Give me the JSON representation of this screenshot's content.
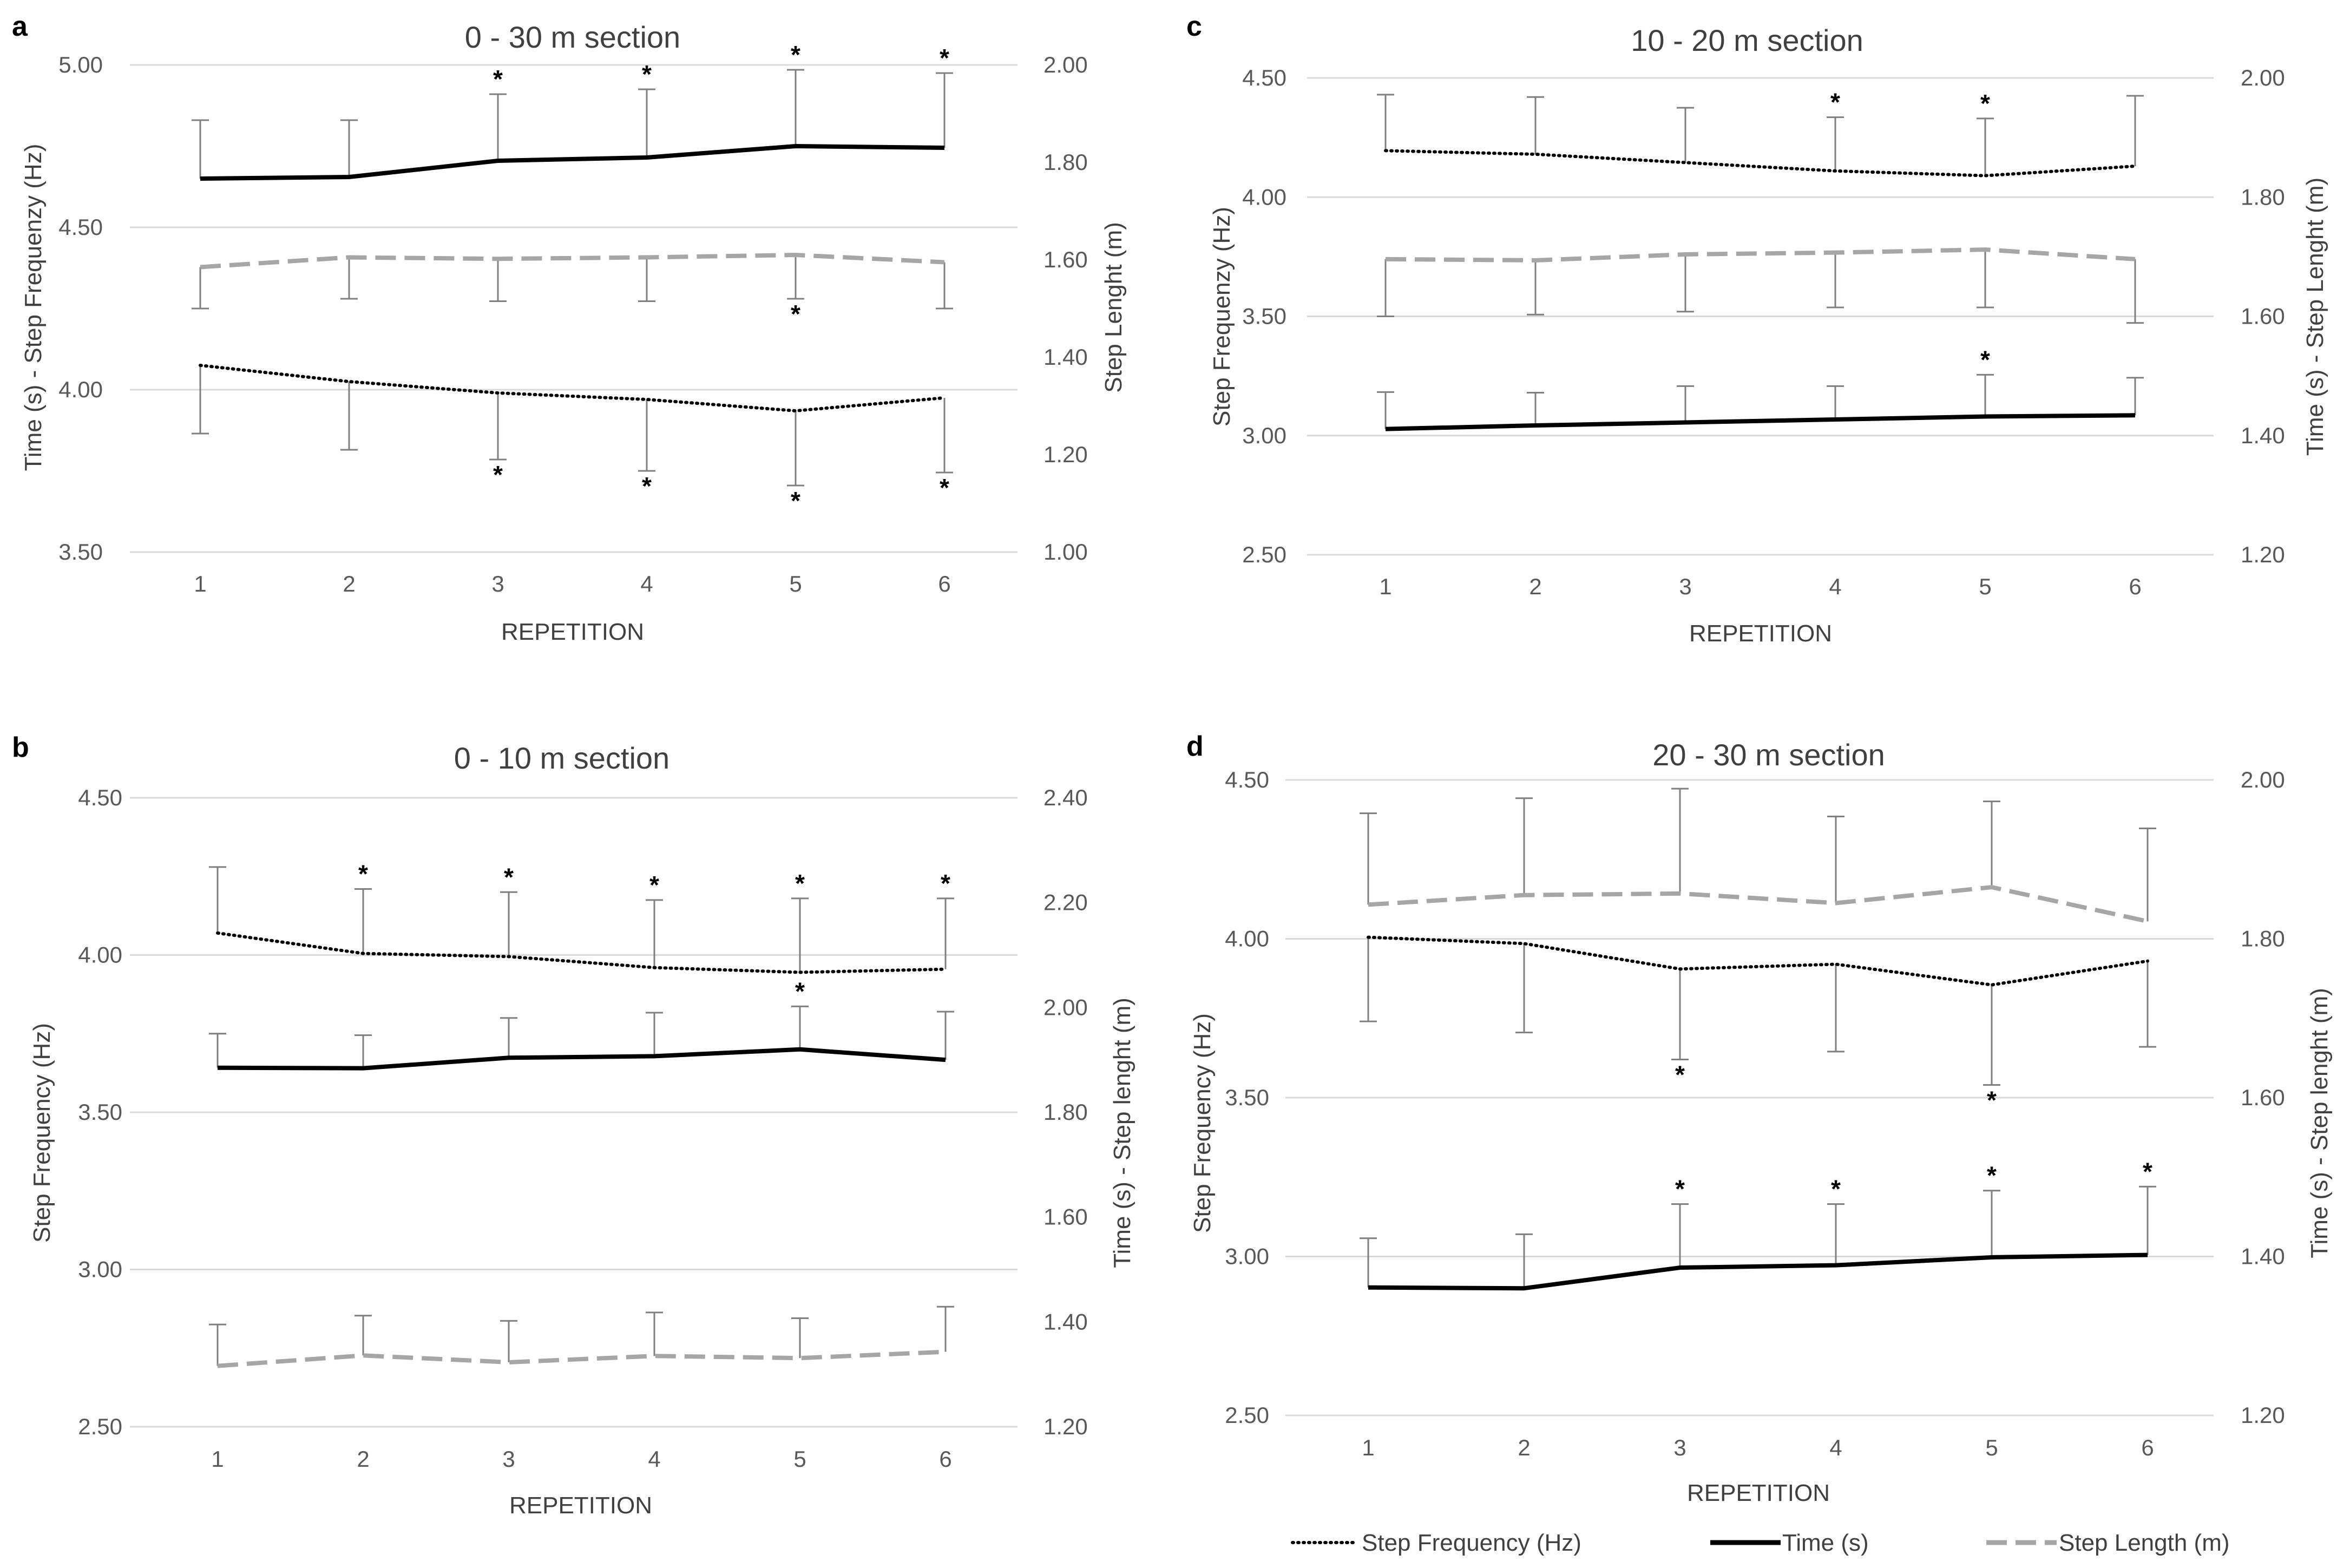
{
  "series_styles": {
    "freq": {
      "name": "Step Frequency (Hz)",
      "color": "#000000",
      "dash": "dotted"
    },
    "time": {
      "name": "Time (s)",
      "color": "#000000",
      "dash": "solid"
    },
    "length": {
      "name": "Step Length (m)",
      "color": "#A6A6A6",
      "dash": "dashed"
    }
  },
  "legend": [
    "Step Frequency (Hz)",
    "Time (s)",
    "Step Length (m)"
  ],
  "chart_data": [
    {
      "panel": "a",
      "type": "line",
      "title": "0 - 30 m section",
      "xlabel": "REPETITION",
      "ylabel_left": "Time (s) - Step Frequenzy (Hz)",
      "ylabel_right": "Step Lenght (m)",
      "categories": [
        "1",
        "2",
        "3",
        "4",
        "5",
        "6"
      ],
      "left_axis": {
        "min": 3.5,
        "max": 5.0,
        "ticks": [
          "3.50",
          "4.00",
          "4.50",
          "5.00"
        ]
      },
      "right_axis": {
        "min": 1.0,
        "max": 2.0,
        "ticks": [
          "1.00",
          "1.20",
          "1.40",
          "1.60",
          "1.80",
          "2.00"
        ]
      },
      "series": [
        {
          "key": "time",
          "axis": "left",
          "values": [
            4.65,
            4.655,
            4.705,
            4.715,
            4.75,
            4.745
          ],
          "err": [
            4.83,
            4.83,
            4.91,
            4.925,
            4.985,
            4.975
          ],
          "stars": [
            "",
            "",
            "above",
            "above",
            "above",
            "above"
          ]
        },
        {
          "key": "length",
          "axis": "right",
          "values": [
            1.585,
            1.605,
            1.602,
            1.605,
            1.61,
            1.595
          ],
          "err": [
            1.5,
            1.52,
            1.515,
            1.515,
            1.52,
            1.5
          ],
          "stars": [
            "",
            "",
            "",
            "",
            "below",
            ""
          ]
        },
        {
          "key": "freq",
          "axis": "left",
          "values": [
            4.075,
            4.025,
            3.99,
            3.97,
            3.935,
            3.975
          ],
          "err": [
            3.865,
            3.815,
            3.785,
            3.75,
            3.705,
            3.745
          ],
          "stars": [
            "",
            "",
            "below",
            "below",
            "below",
            "below"
          ]
        }
      ]
    },
    {
      "panel": "b",
      "type": "line",
      "title": "0 - 10 m section",
      "xlabel": "REPETITION",
      "ylabel_left": "Step Frequency (Hz)",
      "ylabel_right": "Time (s) - Step lenght (m)",
      "categories": [
        "1",
        "2",
        "3",
        "4",
        "5",
        "6"
      ],
      "left_axis": {
        "min": 2.5,
        "max": 4.5,
        "ticks": [
          "2.50",
          "3.00",
          "3.50",
          "4.00",
          "4.50"
        ]
      },
      "right_axis": {
        "min": 1.2,
        "max": 2.4,
        "ticks": [
          "1.20",
          "1.40",
          "1.60",
          "1.80",
          "2.00",
          "2.20",
          "2.40"
        ]
      },
      "series": [
        {
          "key": "freq",
          "axis": "left",
          "values": [
            4.07,
            4.005,
            3.995,
            3.96,
            3.945,
            3.955
          ],
          "err": [
            4.28,
            4.21,
            4.2,
            4.175,
            4.18,
            4.18
          ],
          "stars": [
            "",
            "above",
            "above",
            "above",
            "above",
            "above"
          ]
        },
        {
          "key": "time",
          "axis": "right",
          "values": [
            1.885,
            1.884,
            1.904,
            1.907,
            1.92,
            1.9
          ],
          "err": [
            1.95,
            1.947,
            1.98,
            1.99,
            2.002,
            1.992
          ],
          "stars": [
            "",
            "",
            "",
            "",
            "above",
            ""
          ]
        },
        {
          "key": "length",
          "axis": "right",
          "values": [
            1.316,
            1.336,
            1.323,
            1.335,
            1.331,
            1.343
          ],
          "err": [
            1.395,
            1.412,
            1.402,
            1.418,
            1.407,
            1.429
          ],
          "stars": [
            "",
            "",
            "",
            "",
            "",
            ""
          ]
        }
      ]
    },
    {
      "panel": "c",
      "type": "line",
      "title": "10 - 20 m section",
      "xlabel": "REPETITION",
      "ylabel_left": "Step Frequenzy (Hz)",
      "ylabel_right": "Time (s) - Step Lenght (m)",
      "categories": [
        "1",
        "2",
        "3",
        "4",
        "5",
        "6"
      ],
      "left_axis": {
        "min": 2.5,
        "max": 4.5,
        "ticks": [
          "2.50",
          "3.00",
          "3.50",
          "4.00",
          "4.50"
        ]
      },
      "right_axis": {
        "min": 1.2,
        "max": 2.0,
        "ticks": [
          "1.20",
          "1.40",
          "1.60",
          "1.80",
          "2.00"
        ]
      },
      "series": [
        {
          "key": "freq",
          "axis": "left",
          "values": [
            4.195,
            4.18,
            4.145,
            4.11,
            4.09,
            4.13
          ],
          "err": [
            4.43,
            4.42,
            4.375,
            4.335,
            4.33,
            4.425
          ],
          "stars": [
            "",
            "",
            "",
            "above",
            "above",
            ""
          ]
        },
        {
          "key": "length",
          "axis": "right",
          "values": [
            1.696,
            1.694,
            1.704,
            1.707,
            1.712,
            1.696
          ],
          "err": [
            1.6,
            1.603,
            1.608,
            1.615,
            1.615,
            1.589
          ],
          "stars": [
            "",
            "",
            "",
            "",
            "",
            ""
          ]
        },
        {
          "key": "time",
          "axis": "right",
          "values": [
            1.411,
            1.417,
            1.422,
            1.427,
            1.432,
            1.434
          ],
          "err": [
            1.473,
            1.472,
            1.483,
            1.483,
            1.502,
            1.497
          ],
          "stars": [
            "",
            "",
            "",
            "",
            "above",
            ""
          ]
        }
      ]
    },
    {
      "panel": "d",
      "type": "line",
      "title": "20 - 30 m section",
      "xlabel": "REPETITION",
      "ylabel_left": "Step Frequency (Hz)",
      "ylabel_right": "Time (s) - Step lenght (m)",
      "categories": [
        "1",
        "2",
        "3",
        "4",
        "5",
        "6"
      ],
      "left_axis": {
        "min": 2.5,
        "max": 4.5,
        "ticks": [
          "2.50",
          "3.00",
          "3.50",
          "4.00",
          "4.50"
        ]
      },
      "right_axis": {
        "min": 1.2,
        "max": 2.0,
        "ticks": [
          "1.20",
          "1.40",
          "1.60",
          "1.80",
          "2.00"
        ]
      },
      "series": [
        {
          "key": "length",
          "axis": "right",
          "values": [
            1.843,
            1.855,
            1.857,
            1.845,
            1.865,
            1.822
          ],
          "err": [
            1.958,
            1.977,
            1.989,
            1.954,
            1.973,
            1.939
          ],
          "stars": [
            "",
            "",
            "",
            "",
            "",
            ""
          ]
        },
        {
          "key": "freq",
          "axis": "left",
          "values": [
            4.005,
            3.985,
            3.905,
            3.92,
            3.855,
            3.93
          ],
          "err": [
            3.74,
            3.705,
            3.62,
            3.645,
            3.54,
            3.66
          ],
          "stars": [
            "",
            "",
            "below",
            "",
            "below",
            ""
          ]
        },
        {
          "key": "time",
          "axis": "right",
          "values": [
            1.361,
            1.36,
            1.386,
            1.389,
            1.399,
            1.402
          ],
          "err": [
            1.423,
            1.428,
            1.466,
            1.466,
            1.483,
            1.488
          ],
          "stars": [
            "",
            "",
            "above",
            "above",
            "above",
            "above"
          ]
        }
      ]
    }
  ]
}
